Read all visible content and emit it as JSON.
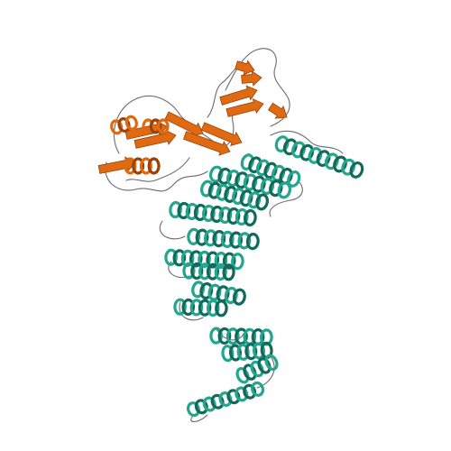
{
  "image": {
    "subject": "protein-ribbon-structure",
    "background": "#ffffff"
  },
  "colors": {
    "chain_a": "#e06a12",
    "chain_a_dark": "#9a4208",
    "chain_b": "#23a690",
    "chain_b_dark": "#136a5a",
    "coil": "#6b6b6b"
  }
}
